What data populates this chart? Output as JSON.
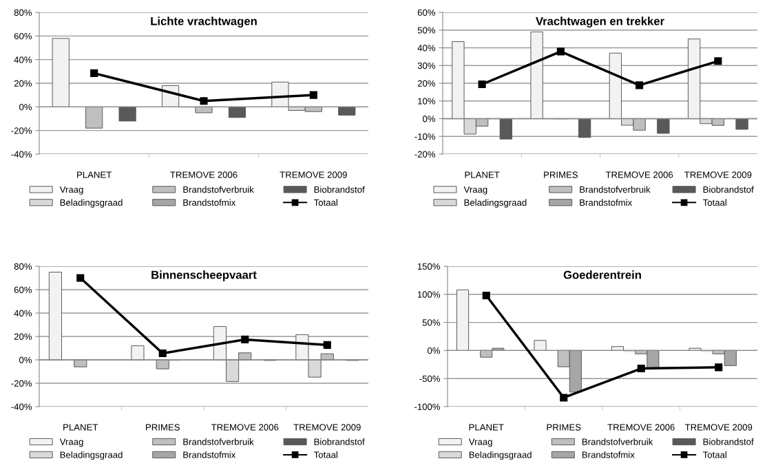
{
  "chart_data": [
    {
      "type": "bar",
      "title": "Lichte vrachtwagen",
      "categories": [
        "PLANET",
        "TREMOVE 2006",
        "TREMOVE 2009"
      ],
      "ylim": [
        -40,
        80
      ],
      "yticks": [
        {
          "value": -40,
          "label": "-40%"
        },
        {
          "value": -20,
          "label": "-20%"
        },
        {
          "value": 0,
          "label": "0%"
        },
        {
          "value": 20,
          "label": "20%"
        },
        {
          "value": 40,
          "label": "40%"
        },
        {
          "value": 60,
          "label": "60%"
        },
        {
          "value": 80,
          "label": "80%"
        }
      ],
      "grid": "y",
      "legend": "bottom",
      "series": [
        {
          "name": "Vraag",
          "color": "#f2f2f2",
          "values": [
            58,
            18,
            21
          ]
        },
        {
          "name": "Beladingsgraad",
          "color": "#d9d9d9",
          "values": [
            null,
            -0.5,
            -3
          ]
        },
        {
          "name": "Brandstofverbruik",
          "color": "#bfbfbf",
          "values": [
            -18,
            -5,
            -4
          ]
        },
        {
          "name": "Brandstofmix",
          "color": "#a6a6a6",
          "values": [
            null,
            null,
            null
          ]
        },
        {
          "name": "Biobrandstof",
          "color": "#595959",
          "values": [
            -12,
            -9,
            -7
          ]
        },
        {
          "name": "Totaal",
          "type": "line",
          "color": "#000000",
          "marker": "square",
          "values": [
            28.5,
            5,
            10
          ]
        }
      ]
    },
    {
      "type": "bar",
      "title": "Vrachtwagen en trekker",
      "categories": [
        "PLANET",
        "PRIMES",
        "TREMOVE 2006",
        "TREMOVE 2009"
      ],
      "ylim": [
        -20,
        60
      ],
      "yticks": [
        {
          "value": -20,
          "label": "-20%"
        },
        {
          "value": -10,
          "label": "-10%"
        },
        {
          "value": 0,
          "label": "0%"
        },
        {
          "value": 10,
          "label": "10%"
        },
        {
          "value": 20,
          "label": "20%"
        },
        {
          "value": 30,
          "label": "30%"
        },
        {
          "value": 40,
          "label": "40%"
        },
        {
          "value": 50,
          "label": "50%"
        },
        {
          "value": 60,
          "label": "60%"
        }
      ],
      "grid": "y",
      "legend": "bottom",
      "series": [
        {
          "name": "Vraag",
          "color": "#f2f2f2",
          "values": [
            43.5,
            49,
            37,
            45
          ]
        },
        {
          "name": "Beladingsgraad",
          "color": "#d9d9d9",
          "values": [
            -8.7,
            -0.3,
            -3.7,
            -2.8
          ]
        },
        {
          "name": "Brandstofverbruik",
          "color": "#bfbfbf",
          "values": [
            -4.2,
            -0.3,
            -6.5,
            -3.8
          ]
        },
        {
          "name": "Brandstofmix",
          "color": "#a6a6a6",
          "values": [
            null,
            null,
            null,
            null
          ]
        },
        {
          "name": "Biobrandstof",
          "color": "#595959",
          "values": [
            -11.5,
            -10.6,
            -8.3,
            -6
          ]
        },
        {
          "name": "Totaal",
          "type": "line",
          "color": "#000000",
          "marker": "square",
          "values": [
            19.4,
            37.9,
            18.9,
            32.5
          ]
        }
      ]
    },
    {
      "type": "bar",
      "title": "Binnenscheepvaart",
      "categories": [
        "PLANET",
        "PRIMES",
        "TREMOVE 2006",
        "TREMOVE 2009"
      ],
      "ylim": [
        -40,
        80
      ],
      "yticks": [
        {
          "value": -40,
          "label": "-40%"
        },
        {
          "value": -20,
          "label": "-20%"
        },
        {
          "value": 0,
          "label": "0%"
        },
        {
          "value": 20,
          "label": "20%"
        },
        {
          "value": 40,
          "label": "40%"
        },
        {
          "value": 60,
          "label": "60%"
        },
        {
          "value": 80,
          "label": "80%"
        }
      ],
      "grid": "y",
      "legend": "bottom",
      "series": [
        {
          "name": "Vraag",
          "color": "#f2f2f2",
          "values": [
            75,
            12,
            28.5,
            21.5
          ]
        },
        {
          "name": "Beladingsgraad",
          "color": "#d9d9d9",
          "values": [
            null,
            null,
            -18.5,
            -14.8
          ]
        },
        {
          "name": "Brandstofverbruik",
          "color": "#bfbfbf",
          "values": [
            -6,
            -7.7,
            6,
            5.2
          ]
        },
        {
          "name": "Brandstofmix",
          "color": "#a6a6a6",
          "values": [
            null,
            -0.5,
            null,
            null
          ]
        },
        {
          "name": "Biobrandstof",
          "color": "#595959",
          "values": [
            null,
            null,
            -0.5,
            -0.5
          ]
        },
        {
          "name": "Totaal",
          "type": "line",
          "color": "#000000",
          "marker": "square",
          "values": [
            70,
            5.6,
            17.4,
            12.7
          ]
        }
      ]
    },
    {
      "type": "bar",
      "title": "Goederentrein",
      "categories": [
        "PLANET",
        "PRIMES",
        "TREMOVE 2006",
        "TREMOVE 2009"
      ],
      "ylim": [
        -100,
        150
      ],
      "yticks": [
        {
          "value": -100,
          "label": "-100%"
        },
        {
          "value": -50,
          "label": "-50%"
        },
        {
          "value": 0,
          "label": "0%"
        },
        {
          "value": 50,
          "label": "50%"
        },
        {
          "value": 100,
          "label": "100%"
        },
        {
          "value": 150,
          "label": "150%"
        }
      ],
      "grid": "y",
      "legend": "bottom",
      "series": [
        {
          "name": "Vraag",
          "color": "#f2f2f2",
          "values": [
            108,
            18,
            7,
            4
          ]
        },
        {
          "name": "Beladingsgraad",
          "color": "#d9d9d9",
          "values": [
            null,
            null,
            -2,
            -2
          ]
        },
        {
          "name": "Brandstofverbruik",
          "color": "#bfbfbf",
          "values": [
            -12,
            -29,
            -6,
            -6
          ]
        },
        {
          "name": "Brandstofmix",
          "color": "#a6a6a6",
          "values": [
            4,
            -74,
            -31,
            -27
          ]
        },
        {
          "name": "Biobrandstof",
          "color": "#595959",
          "values": [
            null,
            null,
            null,
            null
          ]
        },
        {
          "name": "Totaal",
          "type": "line",
          "color": "#000000",
          "marker": "square",
          "values": [
            98,
            -84,
            -32,
            -30
          ]
        }
      ]
    }
  ]
}
